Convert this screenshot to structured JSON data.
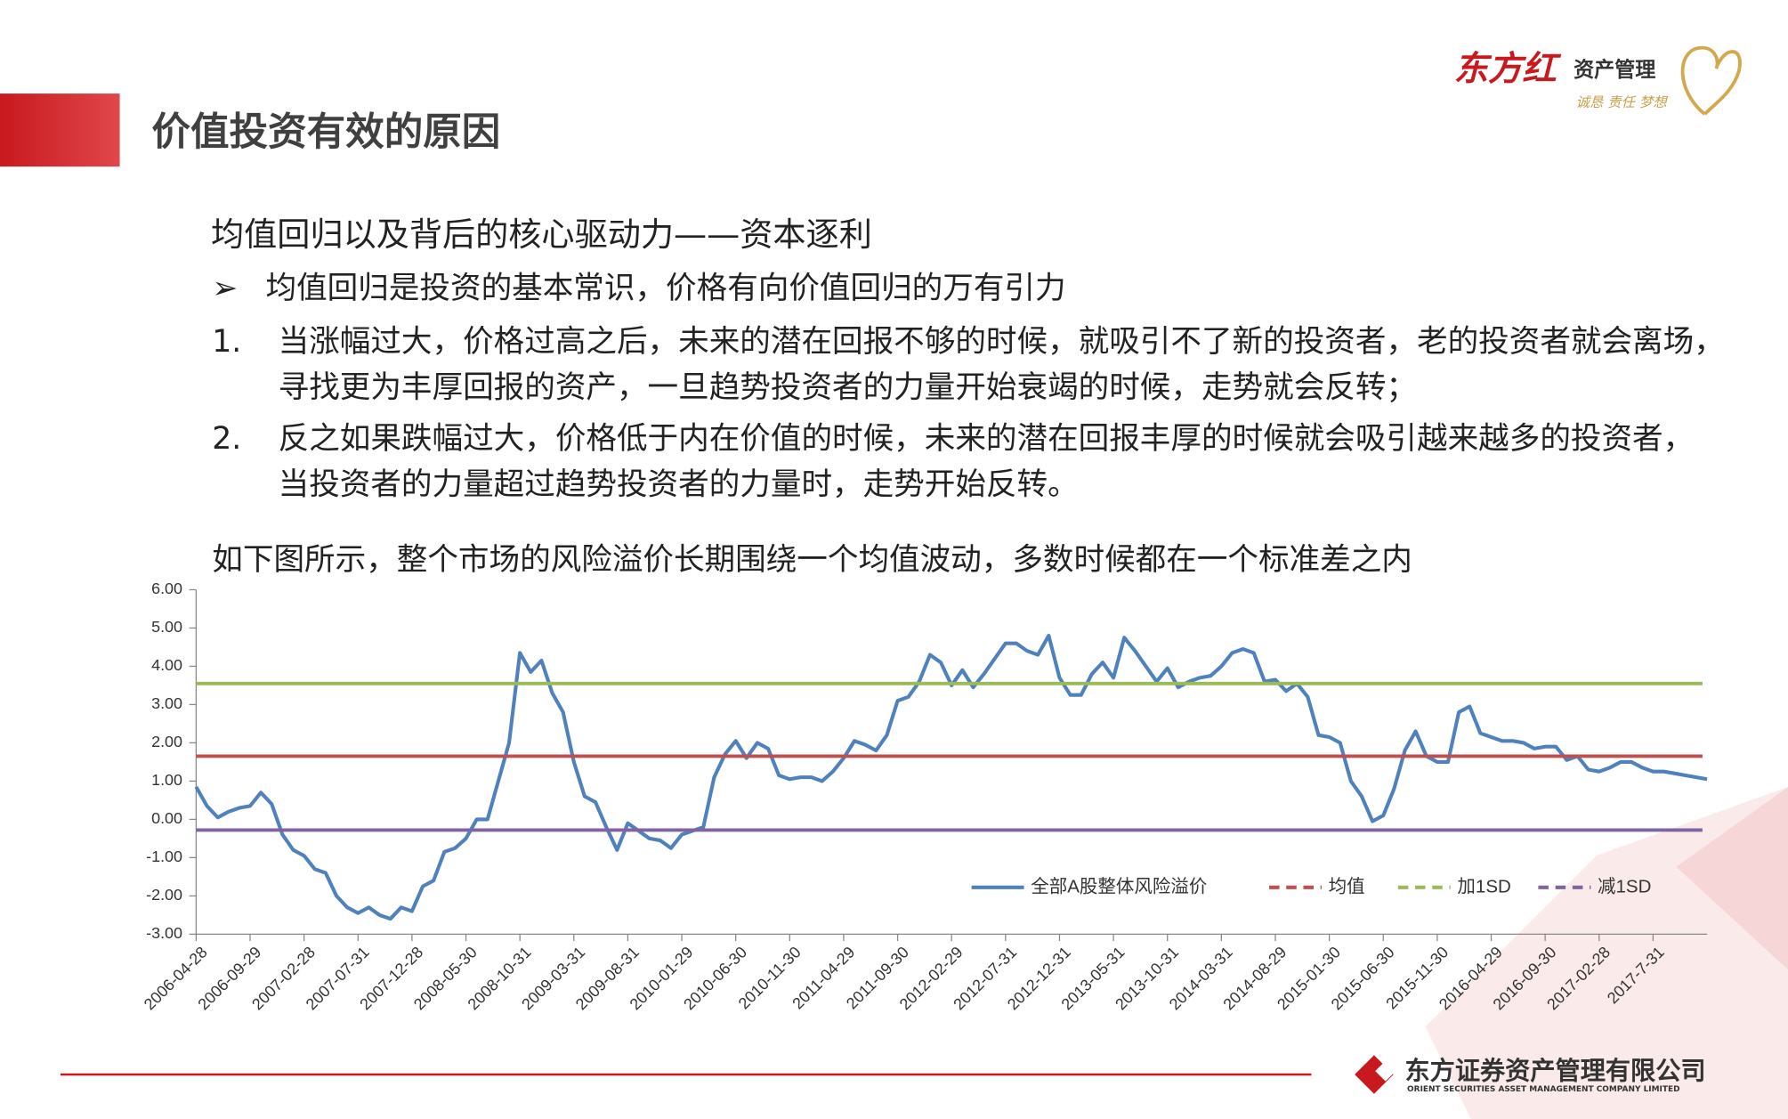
{
  "header": {
    "title": "价值投资有效的原因",
    "logo": {
      "brand": "东方红",
      "name": "资产管理",
      "motto": "诚恳 责任 梦想"
    }
  },
  "body": {
    "heading": "均值回归以及背后的核心驱动力——资本逐利",
    "bullet": "均值回归是投资的基本常识，价格有向价值回归的万有引力",
    "points": [
      {
        "number": "1.",
        "lines": [
          "当涨幅过大，价格过高之后，未来的潜在回报不够的时候，就吸引不了新的投资者，老的投资者就会离场，",
          "寻找更为丰厚回报的资产，一旦趋势投资者的力量开始衰竭的时候，走势就会反转；"
        ]
      },
      {
        "number": "2.",
        "lines": [
          "反之如果跌幅过大，价格低于内在价值的时候，未来的潜在回报丰厚的时候就会吸引越来越多的投资者，",
          "当投资者的力量超过趋势投资者的力量时，走势开始反转。"
        ]
      }
    ],
    "caption": "如下图所示，整个市场的风险溢价长期围绕一个均值波动，多数时候都在一个标准差之内"
  },
  "chart_data": {
    "type": "line",
    "categories": [
      "2006-04-28",
      null,
      null,
      null,
      null,
      "2006-09-29",
      null,
      null,
      null,
      null,
      "2007-02-28",
      null,
      null,
      null,
      null,
      "2007-07-31",
      null,
      null,
      null,
      null,
      "2007-12-28",
      null,
      null,
      null,
      null,
      "2008-05-30",
      null,
      null,
      null,
      null,
      "2008-10-31",
      null,
      null,
      null,
      null,
      "2009-03-31",
      null,
      null,
      null,
      null,
      "2009-08-31",
      null,
      null,
      null,
      null,
      "2010-01-29",
      null,
      null,
      null,
      null,
      "2010-06-30",
      null,
      null,
      null,
      null,
      "2010-11-30",
      null,
      null,
      null,
      null,
      "2011-04-29",
      null,
      null,
      null,
      null,
      "2011-09-30",
      null,
      null,
      null,
      null,
      "2012-02-29",
      null,
      null,
      null,
      null,
      "2012-07-31",
      null,
      null,
      null,
      null,
      "2012-12-31",
      null,
      null,
      null,
      null,
      "2013-05-31",
      null,
      null,
      null,
      null,
      "2013-10-31",
      null,
      null,
      null,
      null,
      "2014-03-31",
      null,
      null,
      null,
      null,
      "2014-08-29",
      null,
      null,
      null,
      null,
      "2015-01-30",
      null,
      null,
      null,
      null,
      "2015-06-30",
      null,
      null,
      null,
      null,
      "2015-11-30",
      null,
      null,
      null,
      null,
      "2016-04-29",
      null,
      null,
      null,
      null,
      "2016-09-30",
      null,
      null,
      null,
      null,
      "2017-02-28",
      null,
      null,
      null,
      null,
      "2017-7-31",
      null,
      null,
      null,
      null,
      null
    ],
    "series": [
      {
        "name": "全部A股整体风险溢价",
        "color": "#4f81bd",
        "values": [
          0.85,
          0.35,
          0.05,
          0.2,
          0.3,
          0.35,
          0.7,
          0.4,
          -0.4,
          -0.8,
          -0.95,
          -1.3,
          -1.4,
          -2.0,
          -2.3,
          -2.45,
          -2.3,
          -2.5,
          -2.6,
          -2.3,
          -2.4,
          -1.75,
          -1.6,
          -0.85,
          -0.75,
          -0.5,
          0.0,
          0.0,
          1.0,
          2.0,
          4.35,
          3.85,
          4.15,
          3.3,
          2.8,
          1.5,
          0.6,
          0.45,
          -0.2,
          -0.8,
          -0.1,
          -0.3,
          -0.5,
          -0.55,
          -0.75,
          -0.4,
          -0.3,
          -0.2,
          1.1,
          1.7,
          2.05,
          1.6,
          2.0,
          1.85,
          1.15,
          1.05,
          1.1,
          1.1,
          1.0,
          1.25,
          1.6,
          2.05,
          1.95,
          1.8,
          2.2,
          3.1,
          3.2,
          3.6,
          4.3,
          4.1,
          3.5,
          3.9,
          3.45,
          3.8,
          4.2,
          4.6,
          4.6,
          4.4,
          4.3,
          4.8,
          3.7,
          3.25,
          3.25,
          3.8,
          4.1,
          3.7,
          4.75,
          4.4,
          4.0,
          3.6,
          3.95,
          3.45,
          3.6,
          3.7,
          3.75,
          4.0,
          4.35,
          4.45,
          4.35,
          3.6,
          3.65,
          3.35,
          3.55,
          3.2,
          2.2,
          2.15,
          2.0,
          1.0,
          0.6,
          -0.05,
          0.1,
          0.8,
          1.8,
          2.3,
          1.65,
          1.5,
          1.5,
          2.8,
          2.95,
          2.25,
          2.15,
          2.05,
          2.05,
          2.0,
          1.85,
          1.9,
          1.9,
          1.55,
          1.65,
          1.3,
          1.25,
          1.35,
          1.5,
          1.5,
          1.35,
          1.25,
          1.25,
          1.2,
          1.15,
          1.1,
          1.05
        ]
      },
      {
        "name": "均值",
        "color": "#c0504d",
        "value": 1.65
      },
      {
        "name": "加1SD",
        "color": "#9bbb59",
        "value": 3.55
      },
      {
        "name": "减1SD",
        "color": "#8064a2",
        "value": -0.28
      }
    ],
    "ylim": [
      -3,
      6
    ],
    "yticks": [
      {
        "value": 6,
        "label": "6.00"
      },
      {
        "value": 5,
        "label": "5.00"
      },
      {
        "value": 4,
        "label": "4.00"
      },
      {
        "value": 3,
        "label": "3.00"
      },
      {
        "value": 2,
        "label": "2.00"
      },
      {
        "value": 1,
        "label": "1.00"
      },
      {
        "value": 0,
        "label": "0.00"
      },
      {
        "value": -1,
        "label": "-1.00"
      },
      {
        "value": -2,
        "label": "-2.00"
      },
      {
        "value": -3,
        "label": "-3.00"
      }
    ],
    "grid": false,
    "legend": "lower right"
  },
  "footer": {
    "company": "东方证券资产管理有限公司",
    "company_en": "ORIENT SECURITIES ASSET MANAGEMENT COMPANY LIMITED"
  }
}
